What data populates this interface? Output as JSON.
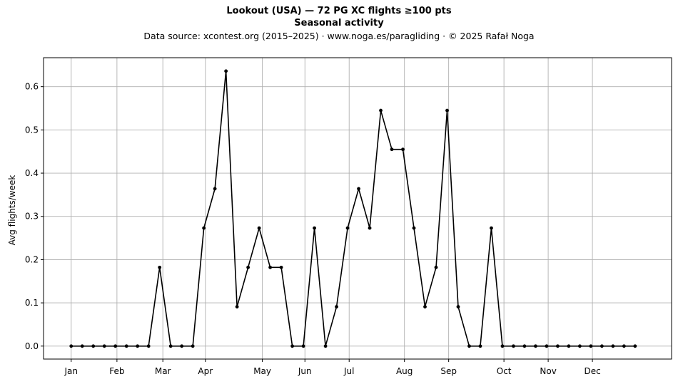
{
  "chart_data": {
    "type": "line",
    "title": "Lookout (USA)  —  72 PG XC flights ≥100 pts",
    "subtitle": "Seasonal activity",
    "source": "Data source: xcontest.org (2015–2025)  ·  www.noga.es/paragliding  ·  © 2025 Rafał Noga",
    "xlabel": "",
    "ylabel": "Avg flights/week",
    "ylim": [
      -0.03,
      0.667
    ],
    "xlim": [
      -2.5,
      54.3
    ],
    "yticks": [
      0.0,
      0.1,
      0.2,
      0.3,
      0.4,
      0.5,
      0.6
    ],
    "ytick_labels": [
      "0.0",
      "0.1",
      "0.2",
      "0.3",
      "0.4",
      "0.5",
      "0.6"
    ],
    "months": [
      {
        "label": "Jan",
        "week": 0
      },
      {
        "label": "Feb",
        "week": 4.14
      },
      {
        "label": "Mar",
        "week": 8.29
      },
      {
        "label": "Apr",
        "week": 12.14
      },
      {
        "label": "May",
        "week": 17.29
      },
      {
        "label": "Jun",
        "week": 21.14
      },
      {
        "label": "Jul",
        "week": 25.14
      },
      {
        "label": "Aug",
        "week": 30.14
      },
      {
        "label": "Sep",
        "week": 34.14
      },
      {
        "label": "Oct",
        "week": 39.14
      },
      {
        "label": "Nov",
        "week": 43.14
      },
      {
        "label": "Dec",
        "week": 47.14
      }
    ],
    "grid": true,
    "series": [
      {
        "color": "#000000",
        "x": [
          0,
          1,
          2,
          3,
          4,
          5,
          6,
          7,
          8,
          9,
          10,
          11,
          12,
          13,
          14,
          15,
          16,
          17,
          18,
          19,
          20,
          21,
          22,
          23,
          24,
          25,
          26,
          27,
          28,
          29,
          30,
          31,
          32,
          33,
          34,
          35,
          36,
          37,
          38,
          39,
          40,
          41,
          42,
          43,
          44,
          45,
          46,
          47,
          48,
          49,
          50,
          51
        ],
        "values": [
          0,
          0,
          0,
          0,
          0,
          0,
          0,
          0,
          0.182,
          0,
          0,
          0,
          0.273,
          0.364,
          0.636,
          0.091,
          0.182,
          0.273,
          0.182,
          0.182,
          0,
          0,
          0.273,
          0,
          0.091,
          0.273,
          0.364,
          0.273,
          0.545,
          0.455,
          0.455,
          0.273,
          0.091,
          0.182,
          0.545,
          0.091,
          0,
          0,
          0.273,
          0,
          0,
          0,
          0,
          0,
          0,
          0,
          0,
          0,
          0,
          0,
          0,
          0
        ]
      }
    ]
  }
}
